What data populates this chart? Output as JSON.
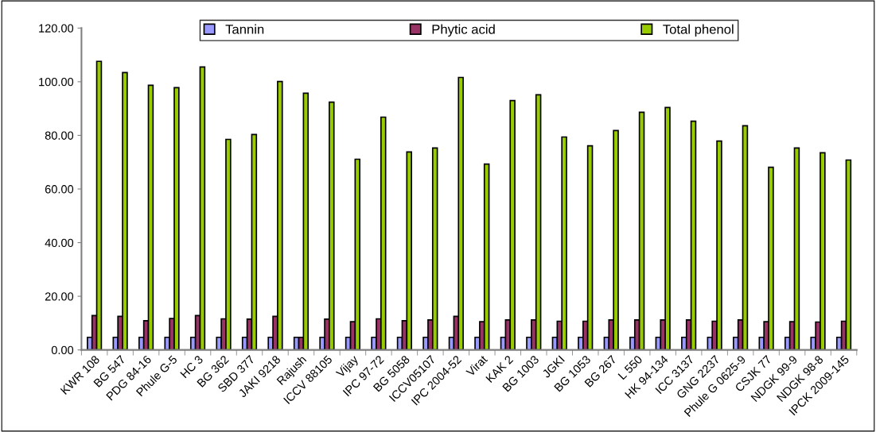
{
  "chart_data": {
    "type": "bar",
    "categories": [
      "KWR 108",
      "BG 547",
      "PDG 84-16",
      "Phule G-5",
      "HC 3",
      "BG 362",
      "SBD 377",
      "JAKI 9218",
      "Rajush",
      "ICCV 88105",
      "Vijay",
      "IPC 97-72",
      "BG 5058",
      "ICCV05107",
      "IPC 2004-52",
      "Virat",
      "KAK 2",
      "BG 1003",
      "JGKI",
      "BG 1053",
      "BG 267",
      "L 550",
      "HK 94-134",
      "ICC 3137",
      "GNG 2237",
      "Phule G 0625-9",
      "CSJK 77",
      "NDGK 99-9",
      "NDGK 98-8",
      "IPCK 2009-145"
    ],
    "series": [
      {
        "name": "Tannin",
        "color": "#9999ff",
        "values": [
          4.7,
          4.7,
          4.7,
          4.7,
          4.7,
          4.7,
          4.7,
          4.7,
          4.7,
          4.7,
          4.7,
          4.7,
          4.7,
          4.7,
          4.7,
          4.7,
          4.7,
          4.7,
          4.7,
          4.7,
          4.7,
          4.7,
          4.7,
          4.7,
          4.7,
          4.7,
          4.7,
          4.7,
          4.7,
          4.7
        ]
      },
      {
        "name": "Phytic acid",
        "color": "#993366",
        "values": [
          12.8,
          12.5,
          10.9,
          11.7,
          12.8,
          11.6,
          11.5,
          12.5,
          4.7,
          11.5,
          10.5,
          11.6,
          10.9,
          11.2,
          12.5,
          10.5,
          11.2,
          11.2,
          10.7,
          10.7,
          11.2,
          11.2,
          11.2,
          11.2,
          10.7,
          11.2,
          10.5,
          10.5,
          10.4,
          10.7
        ]
      },
      {
        "name": "Total phenol",
        "color": "#99cc00",
        "values": [
          107.6,
          103.4,
          98.7,
          97.8,
          105.5,
          78.5,
          80.3,
          100.1,
          95.7,
          92.4,
          71.1,
          86.8,
          73.8,
          75.3,
          101.6,
          69.3,
          93.0,
          95.1,
          79.4,
          76.1,
          81.8,
          88.6,
          90.4,
          85.3,
          77.9,
          83.6,
          68.1,
          75.3,
          73.5,
          70.8
        ]
      }
    ],
    "ylim": [
      0,
      120
    ],
    "yticks": [
      {
        "value": 0,
        "label": "0.00"
      },
      {
        "value": 20,
        "label": "20.00"
      },
      {
        "value": 40,
        "label": "40.00"
      },
      {
        "value": 60,
        "label": "60.00"
      },
      {
        "value": 80,
        "label": "80.00"
      },
      {
        "value": 100,
        "label": "100.00"
      },
      {
        "value": 120,
        "label": "120.00"
      }
    ],
    "grid": false,
    "legend": "top"
  }
}
